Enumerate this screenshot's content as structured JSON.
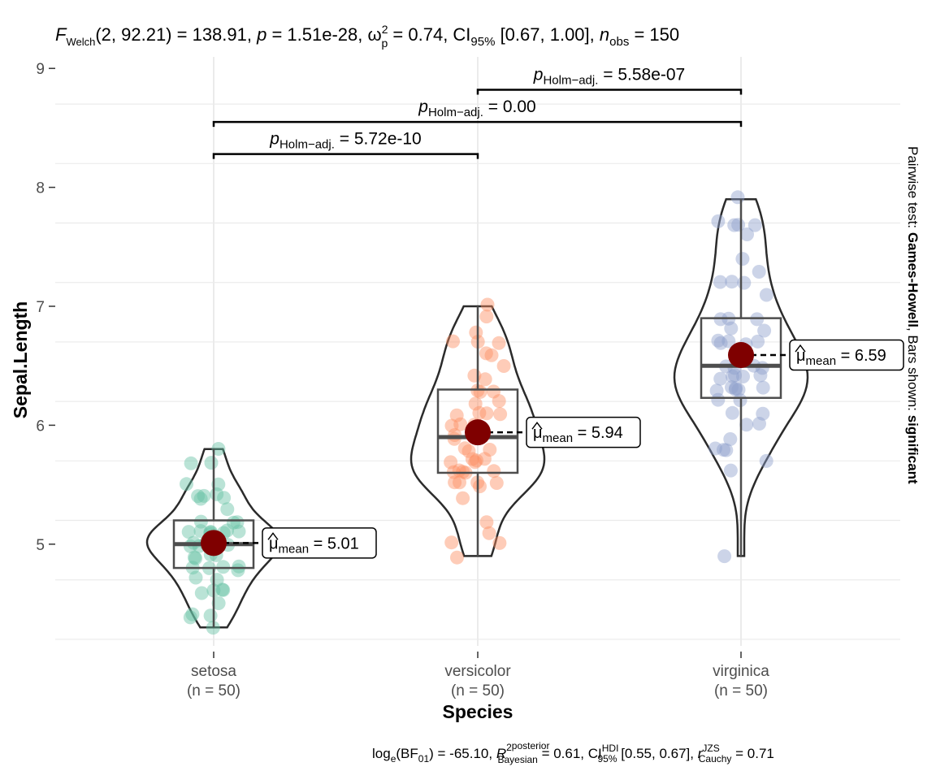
{
  "chart_data": {
    "type": "violin-box-scatter",
    "title_stats": {
      "F_label": "F",
      "F_sub": "Welch",
      "F_args": "(2, 92.21)",
      "F_value": " = 138.91, ",
      "p_label": "p",
      "p_value": " = 1.51e-28, ",
      "omega_label": "ω",
      "omega_sup": "2",
      "omega_sub": "p",
      "omega_value": " = 0.74, CI",
      "ci_sub": "95%",
      "ci_value": " [0.67, 1.00], ",
      "n_label": "n",
      "n_sub": "obs",
      "n_value": " = 150"
    },
    "subtitle_bayes": {
      "log_label": "log",
      "log_sub": "e",
      "bf_text": "(BF",
      "bf_sub": "01",
      "bf_value": ") = -65.10, ",
      "r2_label": "R",
      "r2_sup": "2",
      "r2_sup2": "posterior",
      "r2_sub": "Bayesian",
      "r2_value": " = 0.61, CI",
      "hdi_sup": "HDI",
      "hdi_sub": "95%",
      "hdi_value": " [0.55, 0.67], ",
      "r_label": "r",
      "r_sup": "JZS",
      "r_sub": "Cauchy",
      "r_value": " = 0.71"
    },
    "xlabel": "Species",
    "ylabel": "Sepal.Length",
    "ylim": [
      4.2,
      9.1
    ],
    "yticks": [
      5,
      6,
      7,
      8,
      9
    ],
    "grid": true,
    "right_caption": {
      "prefix": "Pairwise test: ",
      "test": "Games-Howell",
      "middle": ", Bars shown: ",
      "shown": "significant"
    },
    "groups": [
      {
        "name": "setosa",
        "n_label": "(n = 50)",
        "color": "#66C2A5",
        "mean": 5.01,
        "mean_label": " = 5.01",
        "min": 4.3,
        "max": 5.8,
        "q1": 4.8,
        "median": 5.0,
        "q3": 5.2,
        "points": [
          4.3,
          4.4,
          4.4,
          4.4,
          4.5,
          4.6,
          4.6,
          4.6,
          4.6,
          4.7,
          4.7,
          4.8,
          4.8,
          4.8,
          4.8,
          4.8,
          4.9,
          4.9,
          4.9,
          4.9,
          5.0,
          5.0,
          5.0,
          5.0,
          5.0,
          5.0,
          5.0,
          5.0,
          5.1,
          5.1,
          5.1,
          5.1,
          5.1,
          5.1,
          5.1,
          5.1,
          5.2,
          5.2,
          5.2,
          5.3,
          5.4,
          5.4,
          5.4,
          5.4,
          5.4,
          5.5,
          5.5,
          5.7,
          5.7,
          5.8
        ]
      },
      {
        "name": "versicolor",
        "n_label": "(n = 50)",
        "color": "#FC8D62",
        "mean": 5.94,
        "mean_label": " = 5.94",
        "min": 4.9,
        "max": 7.0,
        "q1": 5.6,
        "median": 5.9,
        "q3": 6.3,
        "points": [
          4.9,
          5.0,
          5.0,
          5.1,
          5.2,
          5.4,
          5.5,
          5.5,
          5.5,
          5.5,
          5.5,
          5.6,
          5.6,
          5.6,
          5.6,
          5.6,
          5.7,
          5.7,
          5.7,
          5.7,
          5.7,
          5.8,
          5.8,
          5.8,
          5.9,
          5.9,
          6.0,
          6.0,
          6.0,
          6.0,
          6.1,
          6.1,
          6.1,
          6.1,
          6.2,
          6.2,
          6.3,
          6.3,
          6.3,
          6.4,
          6.4,
          6.5,
          6.6,
          6.6,
          6.7,
          6.7,
          6.7,
          6.8,
          6.9,
          7.0
        ]
      },
      {
        "name": "virginica",
        "n_label": "(n = 50)",
        "color": "#8DA0CB",
        "mean": 6.59,
        "mean_label": " = 6.59",
        "min": 4.9,
        "max": 7.9,
        "q1": 6.23,
        "median": 6.5,
        "q3": 6.9,
        "points": [
          4.9,
          5.6,
          5.7,
          5.8,
          5.8,
          5.8,
          5.9,
          6.0,
          6.0,
          6.1,
          6.1,
          6.2,
          6.2,
          6.3,
          6.3,
          6.3,
          6.3,
          6.3,
          6.3,
          6.4,
          6.4,
          6.4,
          6.4,
          6.4,
          6.5,
          6.5,
          6.5,
          6.5,
          6.7,
          6.7,
          6.7,
          6.7,
          6.7,
          6.8,
          6.8,
          6.9,
          6.9,
          6.9,
          7.1,
          7.2,
          7.2,
          7.2,
          7.3,
          7.4,
          7.6,
          7.7,
          7.7,
          7.7,
          7.7,
          7.9
        ]
      }
    ],
    "mean_symbol": "μ",
    "mean_sub": "mean",
    "comparisons": [
      {
        "from": 0,
        "to": 1,
        "y": 8.28,
        "p_label": "p",
        "p_sub": "Holm−adj.",
        "p_value": " = 5.72e-10"
      },
      {
        "from": 0,
        "to": 2,
        "y": 8.55,
        "p_label": "p",
        "p_sub": "Holm−adj.",
        "p_value": " = 0.00"
      },
      {
        "from": 1,
        "to": 2,
        "y": 8.82,
        "p_label": "p",
        "p_sub": "Holm−adj.",
        "p_value": " = 5.58e-07"
      }
    ],
    "colors": {
      "mean_point": "#7F0000",
      "outline": "#2b2b2b",
      "grid": "#ebebeb"
    }
  }
}
